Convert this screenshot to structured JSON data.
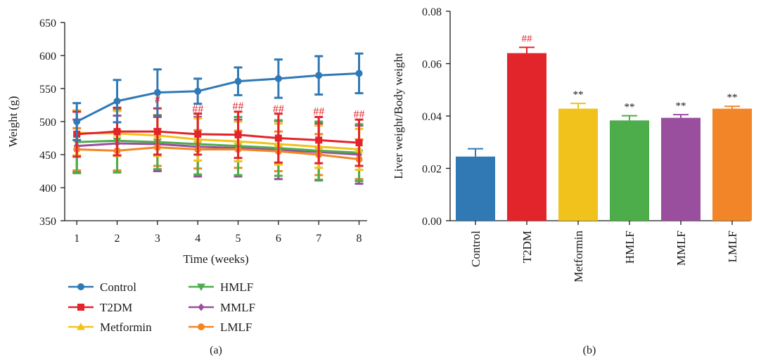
{
  "colors": {
    "Control": "#3079b5",
    "T2DM": "#e2242b",
    "Metformin": "#f1c21b",
    "HMLF": "#4cad4a",
    "MMLF": "#9a4e9e",
    "LMLF": "#f28527",
    "annotation": "#e2242b"
  },
  "chart_data": [
    {
      "type": "line",
      "panel_label": "(a)",
      "xlabel": "Time (weeks)",
      "ylabel": "Weight (g)",
      "xlim": [
        0.7,
        8.2
      ],
      "ylim": [
        350,
        650
      ],
      "x": [
        1,
        2,
        3,
        4,
        5,
        6,
        7,
        8
      ],
      "x_ticks": [
        "1",
        "2",
        "3",
        "4",
        "5",
        "6",
        "7",
        "8"
      ],
      "y_ticks": [
        "350",
        "400",
        "450",
        "500",
        "550",
        "600",
        "650"
      ],
      "y_tick_values": [
        350,
        400,
        450,
        500,
        550,
        600,
        650
      ],
      "legend_placement": "bottom",
      "series": [
        {
          "name": "Control",
          "marker": "circle",
          "values": [
            500,
            531,
            544,
            546,
            561,
            565,
            570,
            573
          ],
          "errors": [
            28,
            32,
            35,
            19,
            21,
            29,
            29,
            30
          ]
        },
        {
          "name": "T2DM",
          "marker": "square",
          "values": [
            481,
            485,
            485,
            481,
            480,
            475,
            472,
            468
          ],
          "errors": [
            34,
            36,
            35,
            31,
            35,
            37,
            35,
            35
          ]
        },
        {
          "name": "Metformin",
          "marker": "triangle-up",
          "values": [
            483,
            482,
            479,
            473,
            470,
            466,
            462,
            458
          ],
          "errors": [
            34,
            34,
            31,
            32,
            30,
            31,
            32,
            31
          ]
        },
        {
          "name": "HMLF",
          "marker": "triangle-down",
          "values": [
            469,
            471,
            469,
            466,
            463,
            460,
            456,
            453
          ],
          "errors": [
            47,
            48,
            41,
            46,
            44,
            42,
            44,
            43
          ]
        },
        {
          "name": "MMLF",
          "marker": "diamond",
          "values": [
            463,
            467,
            466,
            462,
            460,
            457,
            454,
            450
          ],
          "errors": [
            40,
            42,
            41,
            45,
            43,
            44,
            43,
            44
          ]
        },
        {
          "name": "LMLF",
          "marker": "circle",
          "values": [
            458,
            456,
            461,
            458,
            458,
            455,
            450,
            443
          ],
          "errors": [
            32,
            30,
            28,
            29,
            28,
            30,
            31,
            30
          ]
        }
      ],
      "annotations": [
        {
          "x": 3,
          "y": 528,
          "text": "#"
        },
        {
          "x": 4,
          "y": 514,
          "text": "##"
        },
        {
          "x": 5,
          "y": 518,
          "text": "##"
        },
        {
          "x": 6,
          "y": 514,
          "text": "##"
        },
        {
          "x": 7,
          "y": 510,
          "text": "##"
        },
        {
          "x": 8,
          "y": 506,
          "text": "##"
        }
      ]
    },
    {
      "type": "bar",
      "panel_label": "(b)",
      "xlabel": "",
      "ylabel": "Liver weight/Body weight",
      "ylim": [
        0,
        0.08
      ],
      "y_ticks": [
        "0.00",
        "0.02",
        "0.04",
        "0.06",
        "0.08"
      ],
      "y_tick_values": [
        0,
        0.02,
        0.04,
        0.06,
        0.08
      ],
      "categories": [
        "Control",
        "T2DM",
        "Metformin",
        "HMLF",
        "MMLF",
        "LMLF"
      ],
      "values": [
        0.0245,
        0.064,
        0.0428,
        0.0383,
        0.0393,
        0.0428
      ],
      "errors": [
        0.003,
        0.0022,
        0.002,
        0.0018,
        0.0012,
        0.0009
      ],
      "labels": [
        "",
        "##",
        "**",
        "**",
        "**",
        "**"
      ]
    }
  ]
}
